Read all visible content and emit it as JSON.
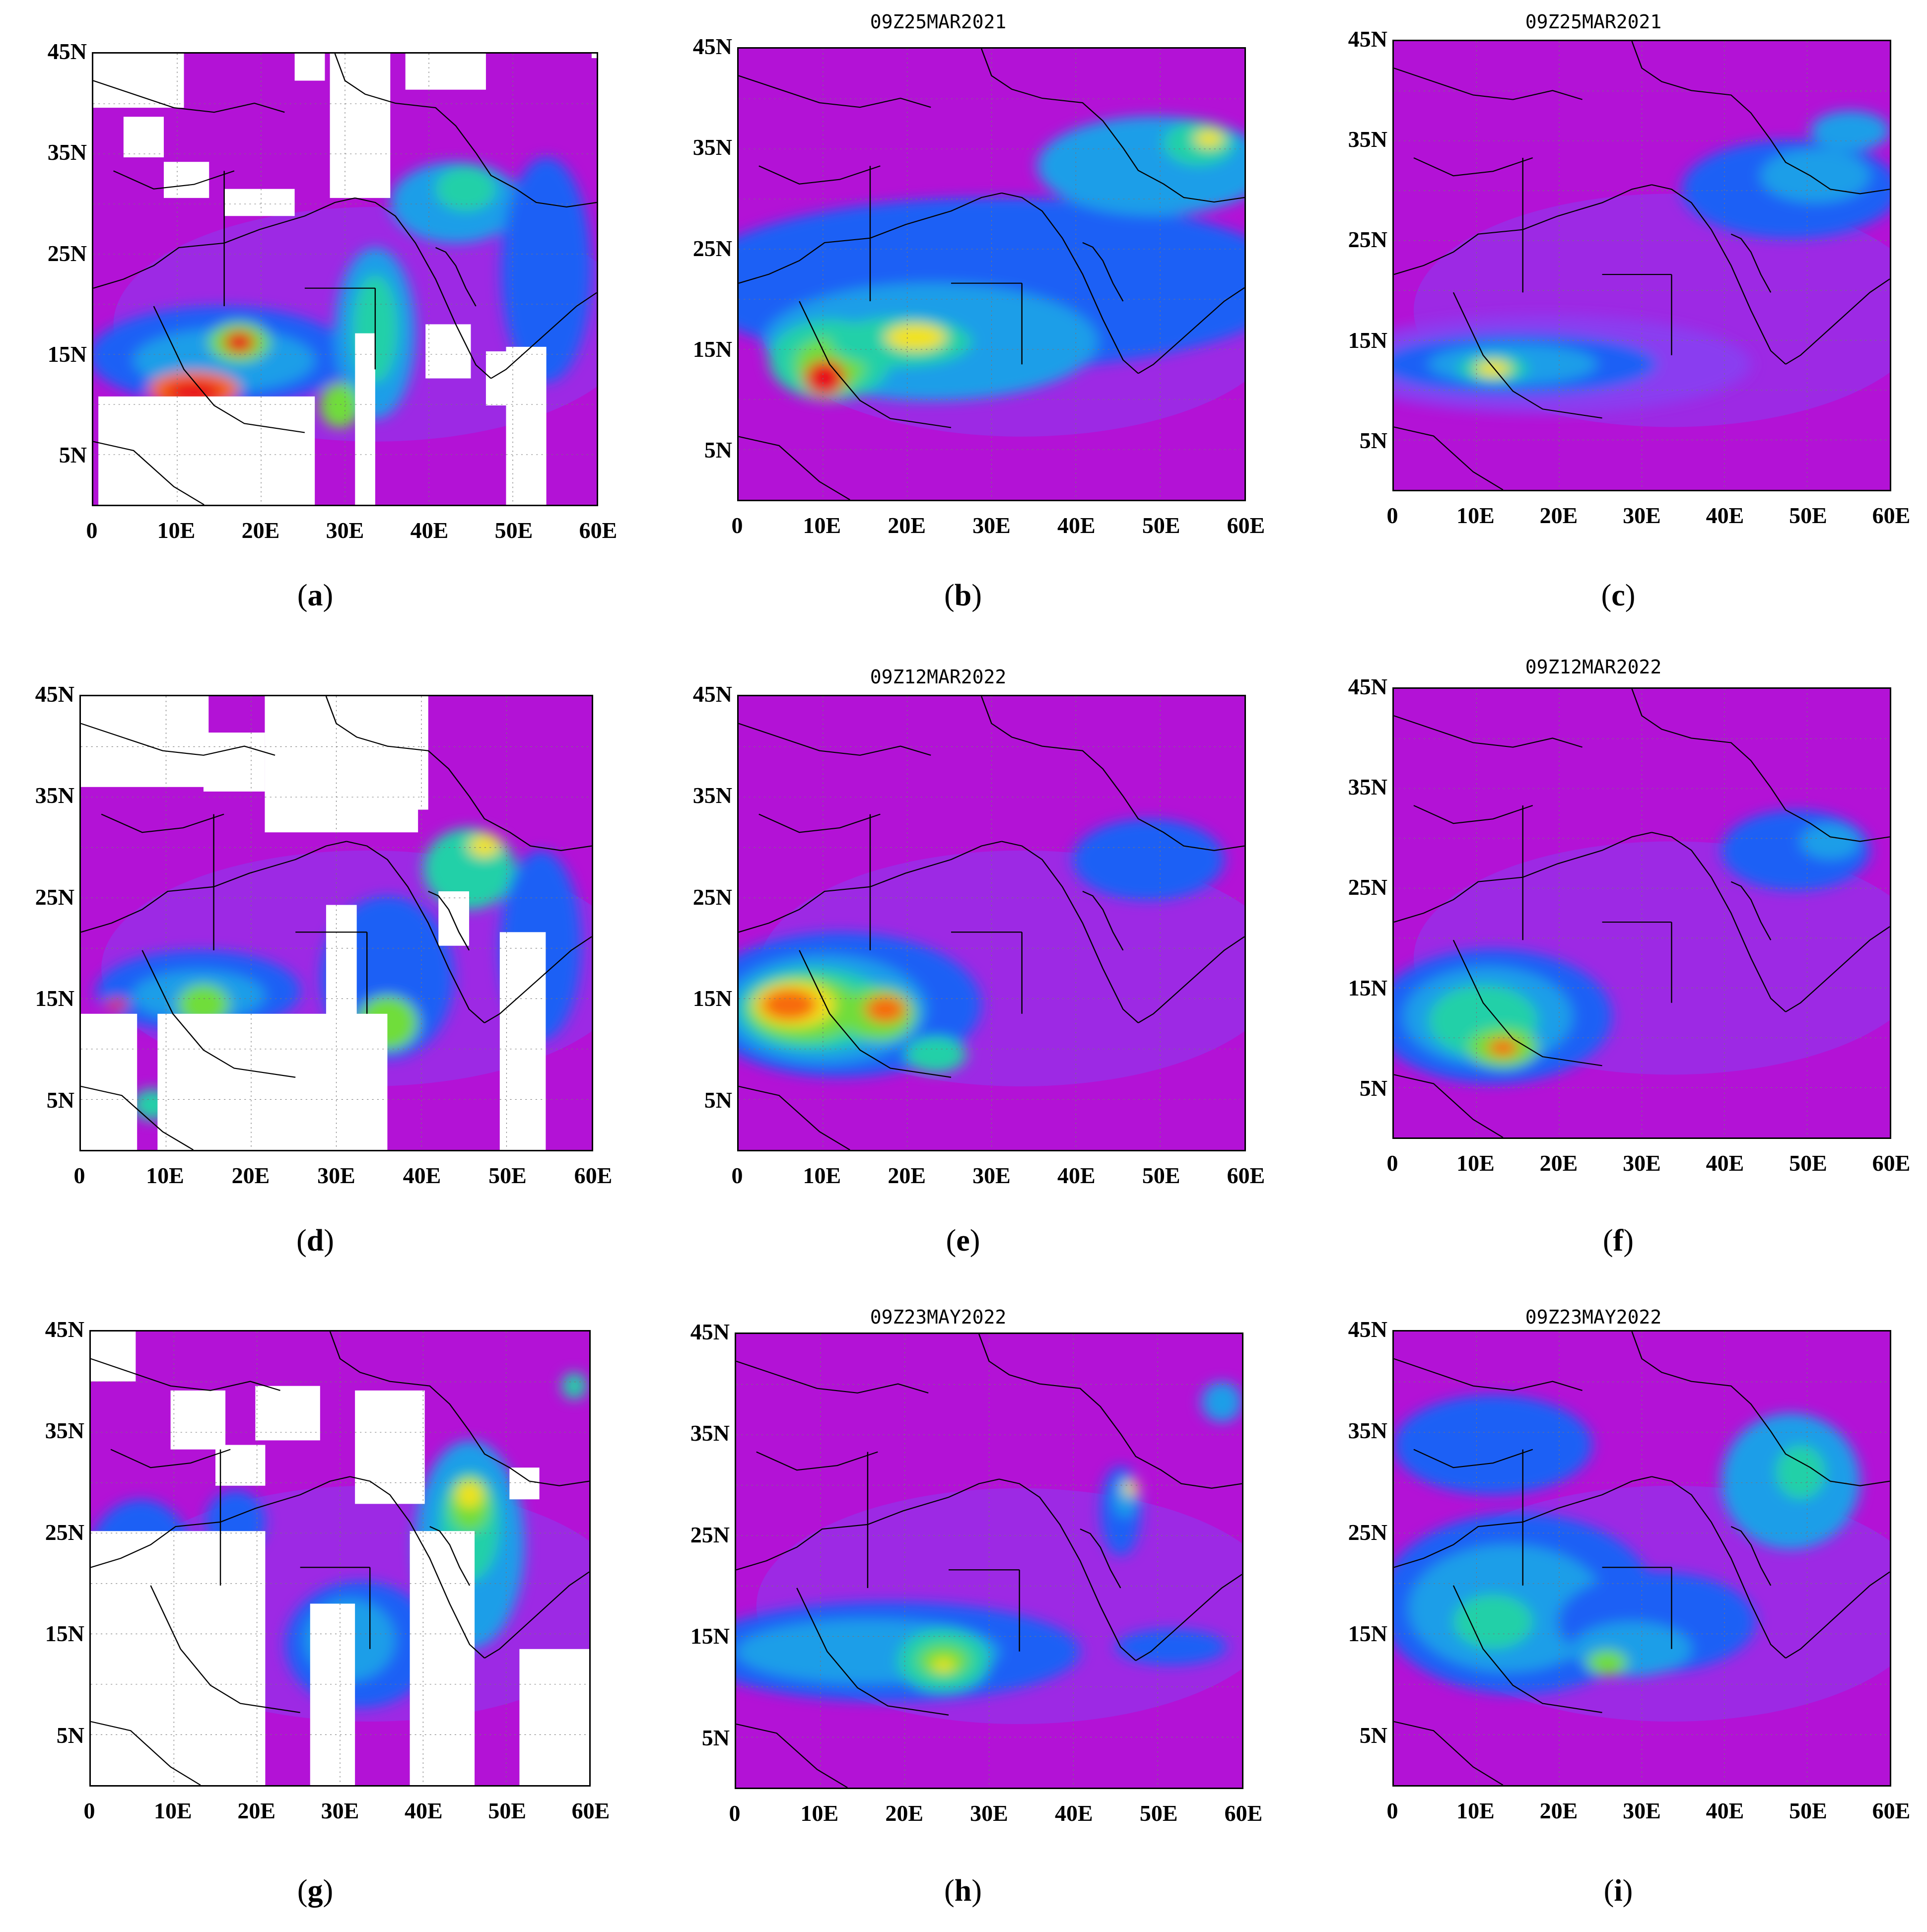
{
  "figure": {
    "axis": {
      "lat_ticks": [
        "45N",
        "35N",
        "25N",
        "15N",
        "5N"
      ],
      "lon_ticks": [
        "0",
        "10E",
        "20E",
        "30E",
        "40E",
        "50E",
        "60E"
      ]
    },
    "colors": {
      "background_field": "#b312d6",
      "moderate_field": "#8a3cf0",
      "low_dust": "#1e60f5",
      "mid_dust": "#1a9ee8",
      "high_dust": "#23d0a8",
      "very_high": "#6fdd3a",
      "peak": "#f2e21c",
      "extreme": "#f76a10",
      "max": "#e8101a",
      "missing": "#ffffff",
      "coastline": "#000000"
    },
    "panels": [
      {
        "letter": "a",
        "title": ""
      },
      {
        "letter": "b",
        "title": "09Z25MAR2021"
      },
      {
        "letter": "c",
        "title": "09Z25MAR2021"
      },
      {
        "letter": "d",
        "title": ""
      },
      {
        "letter": "e",
        "title": "09Z12MAR2022"
      },
      {
        "letter": "f",
        "title": "09Z12MAR2022"
      },
      {
        "letter": "g",
        "title": ""
      },
      {
        "letter": "h",
        "title": "09Z23MAY2022"
      },
      {
        "letter": "i",
        "title": "09Z23MAY2022"
      }
    ]
  }
}
